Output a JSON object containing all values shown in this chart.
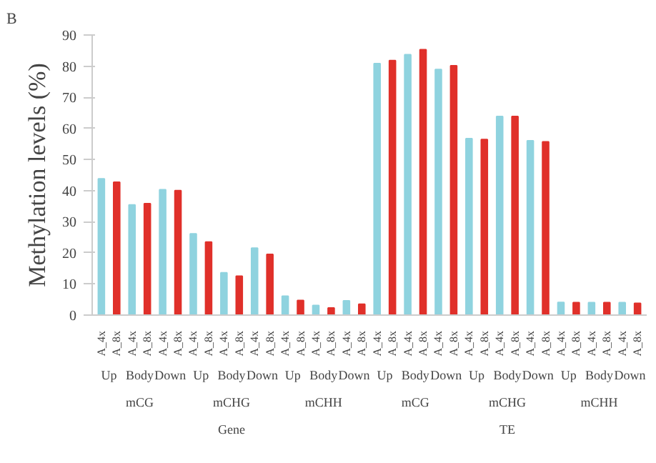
{
  "chart_data": {
    "type": "bar",
    "ylabel": "Methylation levels (%)",
    "categories": [
      "A_4x",
      "A_8x",
      "A_4x",
      "A_8x",
      "A_4x",
      "A_8x",
      "A_4x",
      "A_8x",
      "A_4x",
      "A_8x",
      "A_4x",
      "A_8x",
      "A_4x",
      "A_8x",
      "A_4x",
      "A_8x",
      "A_4x",
      "A_8x",
      "A_4x",
      "A_8x",
      "A_4x",
      "A_8x",
      "A_4x",
      "A_8x",
      "A_4x",
      "A_8x",
      "A_4x",
      "A_8x",
      "A_4x",
      "A_8x",
      "A_4x",
      "A_8x",
      "A_4x",
      "A_8x",
      "A_4x",
      "A_8x"
    ],
    "values": [
      43.8,
      42.7,
      35.4,
      35.8,
      40.3,
      40.0,
      26.1,
      23.5,
      13.6,
      12.5,
      21.5,
      19.5,
      6.1,
      4.7,
      3.1,
      2.3,
      4.6,
      3.5,
      80.8,
      81.8,
      83.7,
      85.3,
      78.9,
      80.1,
      56.7,
      56.4,
      63.8,
      63.8,
      56.0,
      55.7,
      4.1,
      4.0,
      4.0,
      4.0,
      4.0,
      3.8
    ],
    "colors": [
      "#8fd3df",
      "#e0302a",
      "#8fd3df",
      "#e0302a",
      "#8fd3df",
      "#e0302a",
      "#8fd3df",
      "#e0302a",
      "#8fd3df",
      "#e0302a",
      "#8fd3df",
      "#e0302a",
      "#8fd3df",
      "#e0302a",
      "#8fd3df",
      "#e0302a",
      "#8fd3df",
      "#e0302a",
      "#8fd3df",
      "#e0302a",
      "#8fd3df",
      "#e0302a",
      "#8fd3df",
      "#e0302a",
      "#8fd3df",
      "#e0302a",
      "#8fd3df",
      "#e0302a",
      "#8fd3df",
      "#e0302a",
      "#8fd3df",
      "#e0302a",
      "#8fd3df",
      "#e0302a",
      "#8fd3df",
      "#e0302a"
    ],
    "ylim": [
      0,
      90
    ],
    "yticks": [
      0,
      10,
      20,
      30,
      40,
      50,
      60,
      70,
      80,
      90
    ],
    "grid": false,
    "annotations": [
      "B",
      "Up",
      "Body",
      "Down",
      "Up",
      "Body",
      "Down",
      "Up",
      "Body",
      "Down",
      "Up",
      "Body",
      "Down",
      "Up",
      "Body",
      "Down",
      "Up",
      "Body",
      "Down",
      "mCG",
      "mCHG",
      "mCHH",
      "mCG",
      "mCHG",
      "mCHH",
      "Gene",
      "TE"
    ]
  }
}
